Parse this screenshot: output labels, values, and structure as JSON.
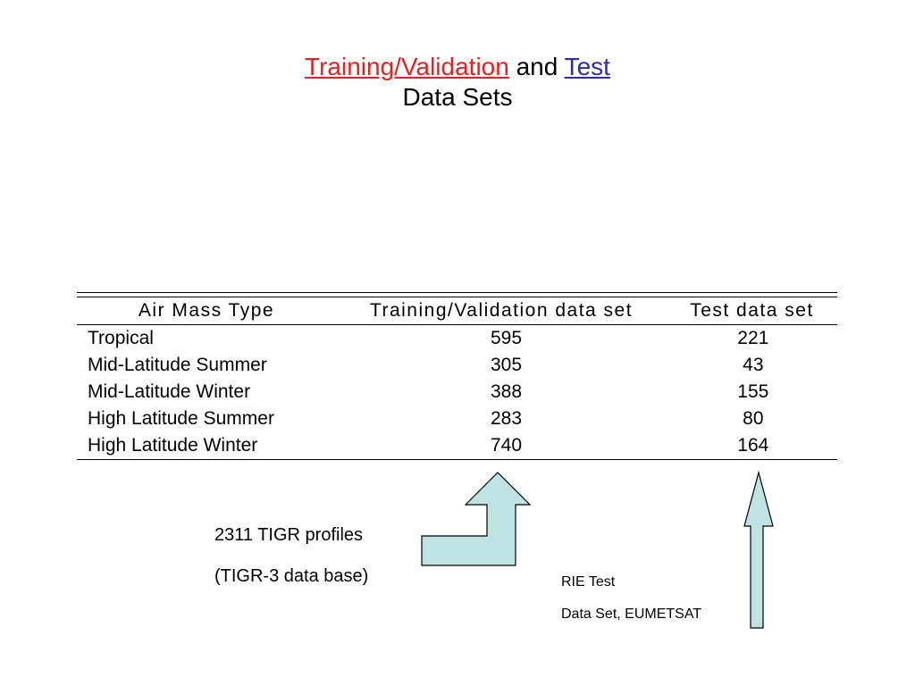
{
  "title": {
    "part1": "Training/Validation",
    "part2": "and",
    "part3": "Test",
    "line2": "Data Sets"
  },
  "table": {
    "headers": [
      "Air Mass Type",
      "Training/Validation data set",
      "Test data set"
    ],
    "rows": [
      [
        "Tropical",
        "595",
        "221"
      ],
      [
        "Mid-Latitude Summer",
        "305",
        "43"
      ],
      [
        "Mid-Latitude Winter",
        "388",
        "155"
      ],
      [
        "High Latitude Summer",
        "283",
        "80"
      ],
      [
        "High Latitude Winter",
        "740",
        "164"
      ]
    ]
  },
  "notes": {
    "tigr_line1": "2311 TIGR profiles",
    "tigr_line2": "(TIGR-3 data base)",
    "rie_line1": "RIE Test",
    "rie_line2": "Data Set, EUMETSAT"
  },
  "colors": {
    "title_red": "#ee1c1c",
    "title_blue": "#2b2bbb",
    "arrow_fill": "#bfe3e3"
  }
}
